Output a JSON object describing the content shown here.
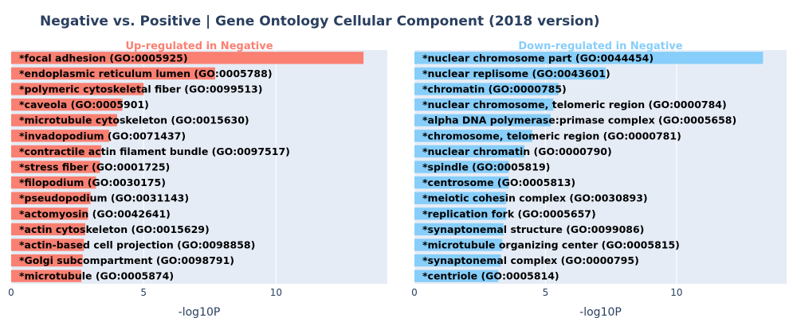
{
  "chart_data": {
    "type": "bar",
    "orientation": "horizontal",
    "title": "Negative vs. Positive | Gene Ontology Cellular Component (2018 version)",
    "panels": [
      {
        "subtitle": "Up-regulated in Negative",
        "color": "#fa8072",
        "xlabel": "-log10P",
        "xlim": [
          0,
          14.2
        ],
        "xticks": [
          "0",
          "5",
          "10"
        ],
        "categories": [
          "*focal adhesion (GO:0005925)",
          "*endoplasmic reticulum lumen (GO:0005788)",
          "*polymeric cytoskeletal fiber (GO:0099513)",
          "*caveola (GO:0005901)",
          "*microtubule cytoskeleton (GO:0015630)",
          "*invadopodium (GO:0071437)",
          "*contractile actin filament bundle (GO:0097517)",
          "*stress fiber (GO:0001725)",
          "*filopodium (GO:0030175)",
          "*pseudopodium (GO:0031143)",
          "*actomyosin (GO:0042641)",
          "*actin cytoskeleton (GO:0015629)",
          "*actin-based cell projection (GO:0098858)",
          "*Golgi subcompartment (GO:0098791)",
          "*microtubule (GO:0005874)"
        ],
        "values": [
          13.3,
          7.7,
          5.0,
          4.2,
          4.0,
          3.7,
          3.4,
          3.35,
          3.2,
          3.0,
          2.9,
          2.8,
          2.75,
          2.7,
          2.65
        ]
      },
      {
        "subtitle": "Down-regulated in Negative",
        "color": "#87cefa",
        "xlabel": "-log10P",
        "xlim": [
          0,
          14.2
        ],
        "xticks": [
          "0",
          "5",
          "10"
        ],
        "categories": [
          "*nuclear chromosome part (GO:0044454)",
          "*nuclear replisome (GO:0043601)",
          "*chromatin (GO:0000785)",
          "*nuclear chromosome, telomeric region (GO:0000784)",
          "*alpha DNA polymerase:primase complex (GO:0005658)",
          "*chromosome, telomeric region (GO:0000781)",
          "*nuclear chromatin (GO:0000790)",
          "*spindle (GO:0005819)",
          "*centrosome (GO:0005813)",
          "*meiotic cohesin complex (GO:0030893)",
          "*replication fork (GO:0005657)",
          "*synaptonemal structure (GO:0099086)",
          "*microtubule organizing center (GO:0005815)",
          "*synaptonemal complex (GO:0000795)",
          "*centriole (GO:0005814)"
        ],
        "values": [
          13.3,
          7.3,
          5.5,
          5.3,
          5.2,
          4.5,
          4.2,
          3.6,
          3.6,
          3.5,
          3.5,
          3.4,
          3.35,
          3.3,
          3.2
        ]
      }
    ]
  }
}
